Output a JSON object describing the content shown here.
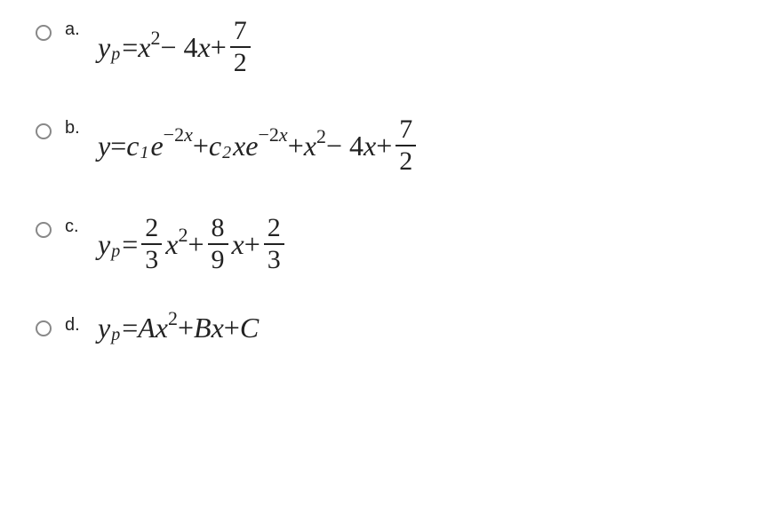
{
  "options": {
    "a": {
      "letter": "a.",
      "lhs_var": "y",
      "lhs_sub": "p",
      "eq": " = ",
      "terms": {
        "x": "x",
        "sq": "2",
        "minus4x": " − 4",
        "x2": "x",
        "plus": " + ",
        "frac_num": "7",
        "frac_den": "2"
      }
    },
    "b": {
      "letter": "b.",
      "lhs_var": "y",
      "eq": " = ",
      "c1": "c",
      "c1_sub": "1",
      "e1": "e",
      "exp1_neg": "−2",
      "exp1_x": "x",
      "plus1": " + ",
      "c2": "c",
      "c2_sub": "2",
      "xe": "xe",
      "exp2_neg": "−2",
      "exp2_x": "x",
      "plus2": " + ",
      "x_var": "x",
      "sq": "2",
      "minus4x": " − 4",
      "x2": "x",
      "plus3": " + ",
      "frac_num": "7",
      "frac_den": "2"
    },
    "c": {
      "letter": "c.",
      "lhs_var": "y",
      "lhs_sub": "p",
      "eq": " = ",
      "frac1_num": "2",
      "frac1_den": "3",
      "x1": "x",
      "sq": "2",
      "plus1": " + ",
      "frac2_num": "8",
      "frac2_den": "9",
      "x2": "x",
      "plus2": " + ",
      "frac3_num": "2",
      "frac3_den": "3"
    },
    "d": {
      "letter": "d.",
      "lhs_var": "y",
      "lhs_sub": "p",
      "eq": " = ",
      "A": "A",
      "x1": "x",
      "sq": "2",
      "plusB": " + ",
      "B": "B",
      "x2": "x",
      "plusC": " + ",
      "C": "C"
    }
  },
  "colors": {
    "text": "#222222",
    "radio_border": "#888888",
    "background": "#ffffff"
  },
  "fonts": {
    "letter_size": 20,
    "equation_size": 32,
    "sub_size": 20,
    "sup_size": 22
  }
}
